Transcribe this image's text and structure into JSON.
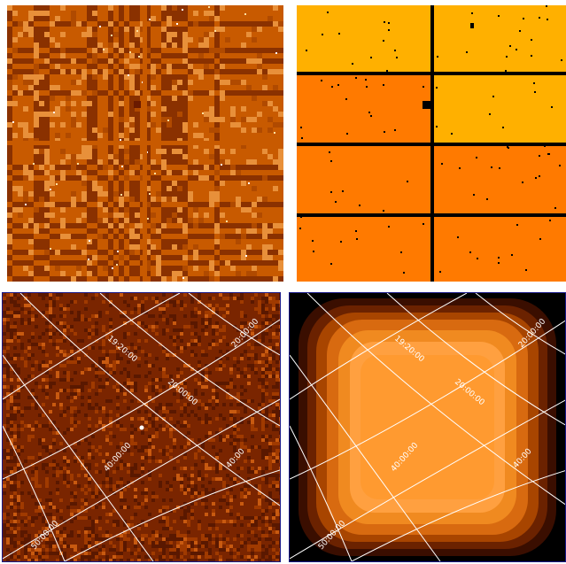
{
  "panels": {
    "top_left": {
      "kind": "raw-detector-image"
    },
    "top_right": {
      "kind": "chip-map-image"
    },
    "bottom_left": {
      "kind": "sky-image-with-coordinate-grid",
      "grid_labels": {
        "ra_1": "19:20:00",
        "ra_2": "20:00:00",
        "ra_3": "20:00:00",
        "dec_1": "40:00:00",
        "dec_2": "40:00",
        "dec_3": "50:00:00"
      }
    },
    "bottom_right": {
      "kind": "exposure-map-with-coordinate-grid",
      "grid_labels": {
        "ra_1": "19:20:00",
        "ra_2": "20:00:00",
        "ra_3": "20:00:00",
        "dec_1": "40:00:00",
        "dec_2": "40:00",
        "dec_3": "50:00:00"
      }
    }
  },
  "colors": {
    "tl_base": "#c85a00",
    "tl_dark": "#8a3100",
    "tl_light": "#e8903a",
    "tr_yellow": "#ffb000",
    "tr_orange": "#ff7a00",
    "tr_line": "#000000",
    "bl_base": "#7a2500",
    "br_levels": [
      "#000000",
      "#3a0e00",
      "#6b2200",
      "#a84500",
      "#d86a10",
      "#f08a20",
      "#ffa040",
      "#ff9a30"
    ],
    "grid": "#ffffff",
    "frame": "#1a1a8a"
  }
}
